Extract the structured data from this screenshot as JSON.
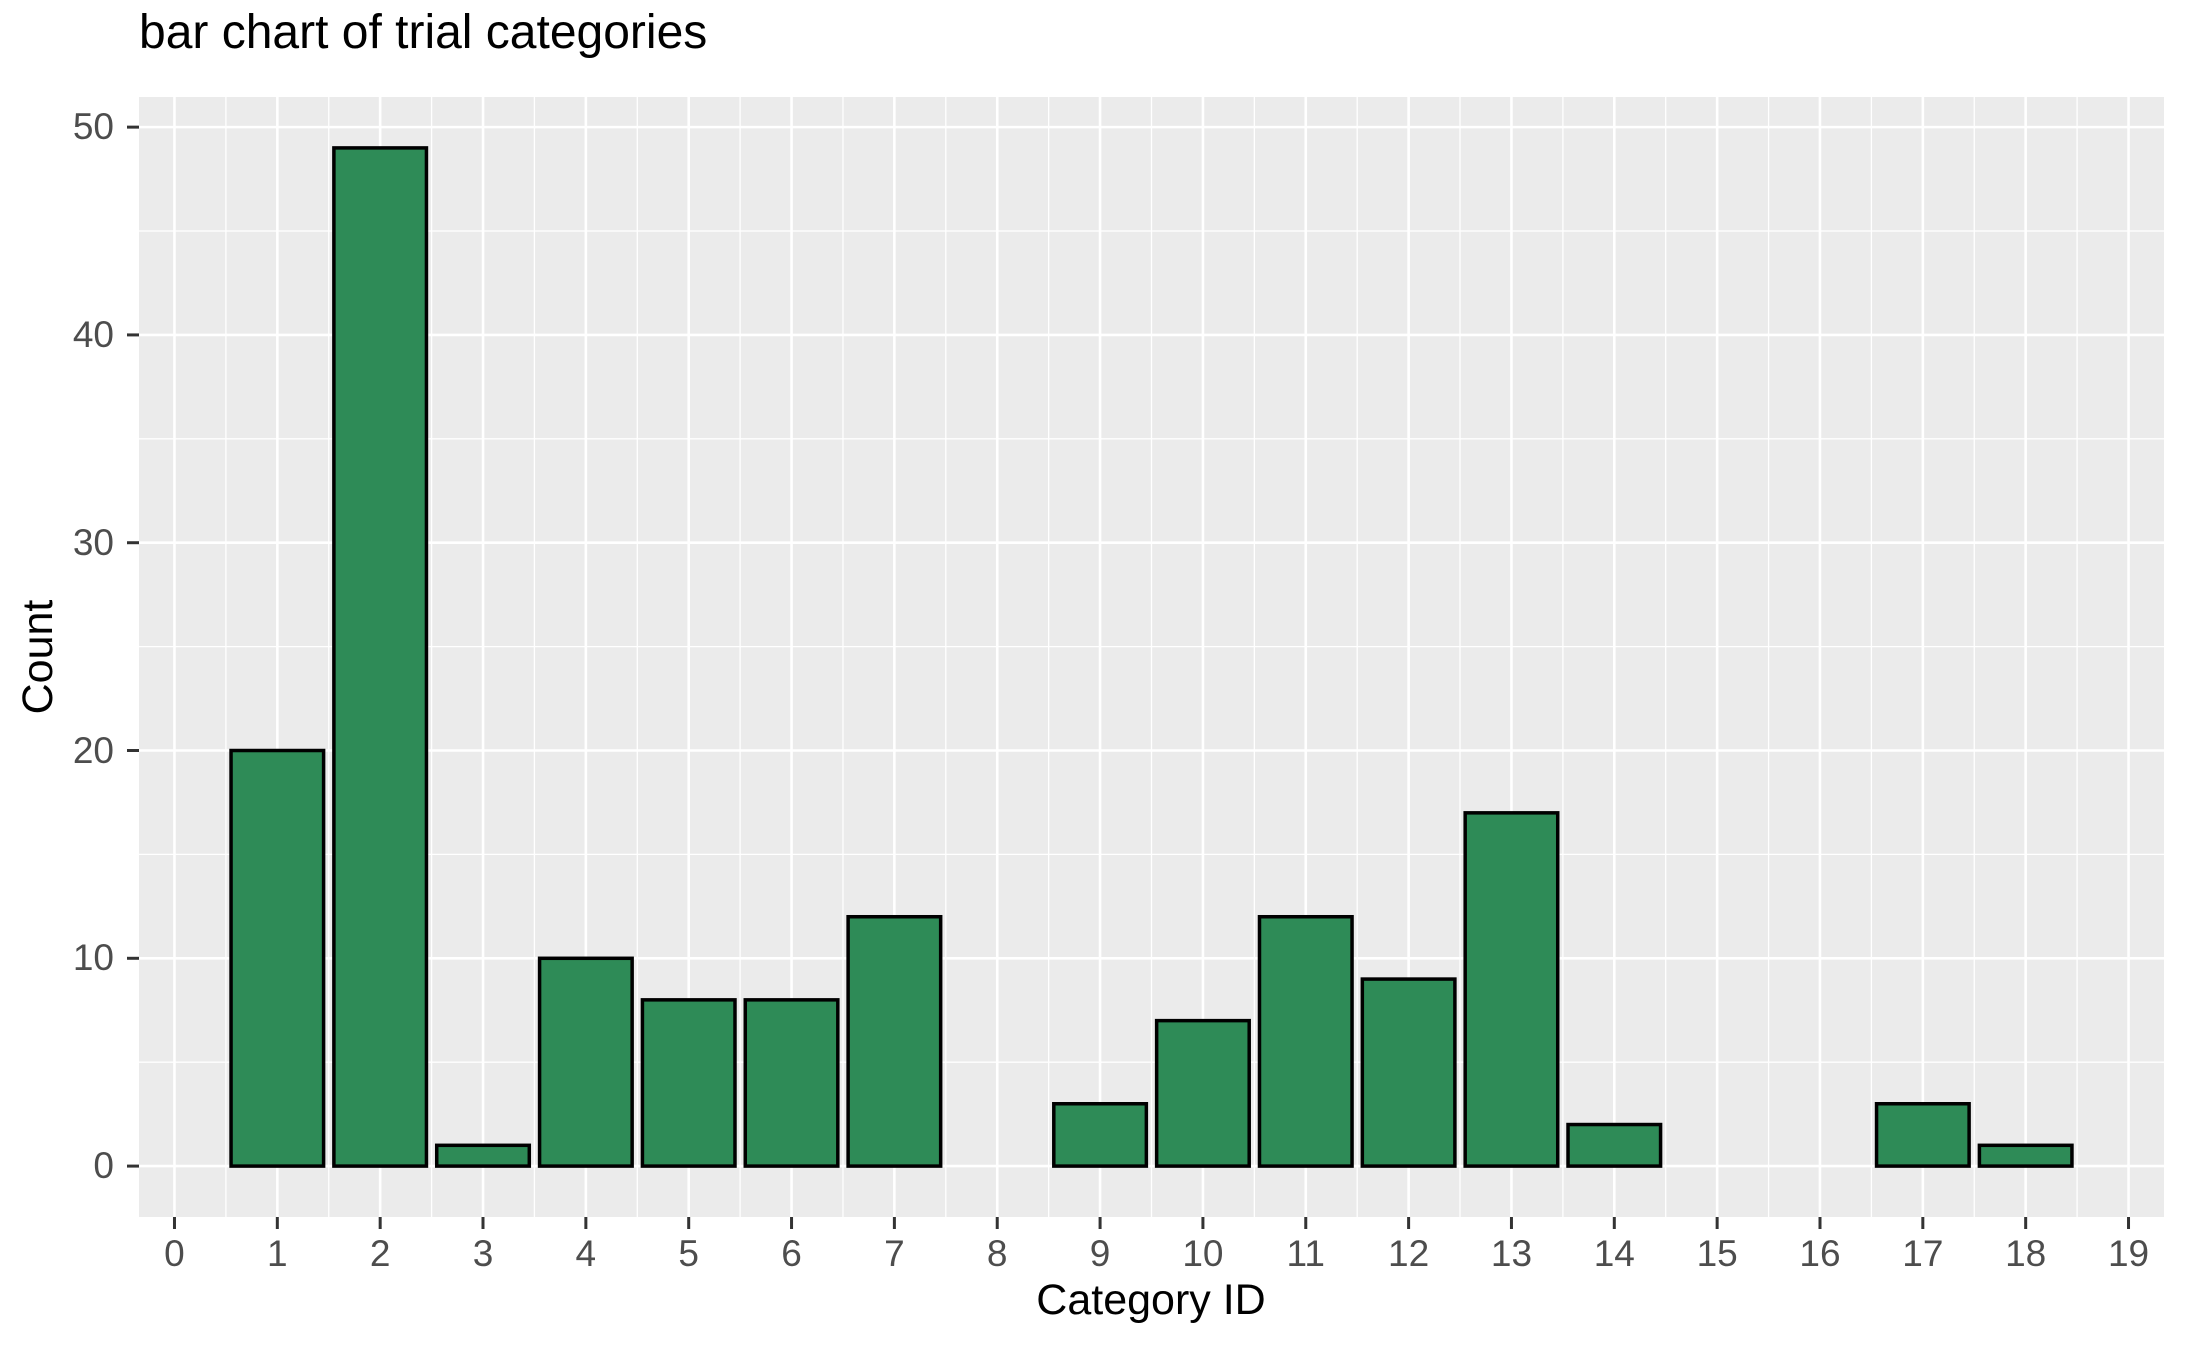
{
  "chart_data": {
    "type": "bar",
    "title": "bar chart of trial categories",
    "xlabel": "Category ID",
    "ylabel": "Count",
    "categories": [
      0,
      1,
      2,
      3,
      4,
      5,
      6,
      7,
      8,
      9,
      10,
      11,
      12,
      13,
      14,
      15,
      16,
      17,
      18,
      19
    ],
    "values": [
      0,
      20,
      49,
      1,
      10,
      8,
      8,
      12,
      0,
      3,
      7,
      12,
      9,
      17,
      2,
      0,
      0,
      3,
      1,
      0
    ],
    "x_ticks": [
      0,
      1,
      2,
      3,
      4,
      5,
      6,
      7,
      8,
      9,
      10,
      11,
      12,
      13,
      14,
      15,
      16,
      17,
      18,
      19
    ],
    "y_ticks": [
      0,
      10,
      20,
      30,
      40,
      50
    ],
    "y_minor": [
      5,
      15,
      25,
      35,
      45
    ],
    "x_minor": [
      0.5,
      1.5,
      2.5,
      3.5,
      4.5,
      5.5,
      6.5,
      7.5,
      8.5,
      9.5,
      10.5,
      11.5,
      12.5,
      13.5,
      14.5,
      15.5,
      16.5,
      17.5,
      18.5
    ],
    "xlim": [
      -0.345,
      19.345
    ],
    "ylim": [
      -2.45,
      51.45
    ],
    "bar_width": 0.9,
    "legend": "none",
    "grid": "on",
    "colors": {
      "bar_fill": "#2e8b57",
      "bar_stroke": "#000000",
      "panel_bg": "#ebebeb",
      "grid_major": "#ffffff",
      "grid_minor": "#ffffff",
      "tick_mark": "#333333",
      "tick_label": "#4d4d4d",
      "title_text": "#000000"
    }
  }
}
